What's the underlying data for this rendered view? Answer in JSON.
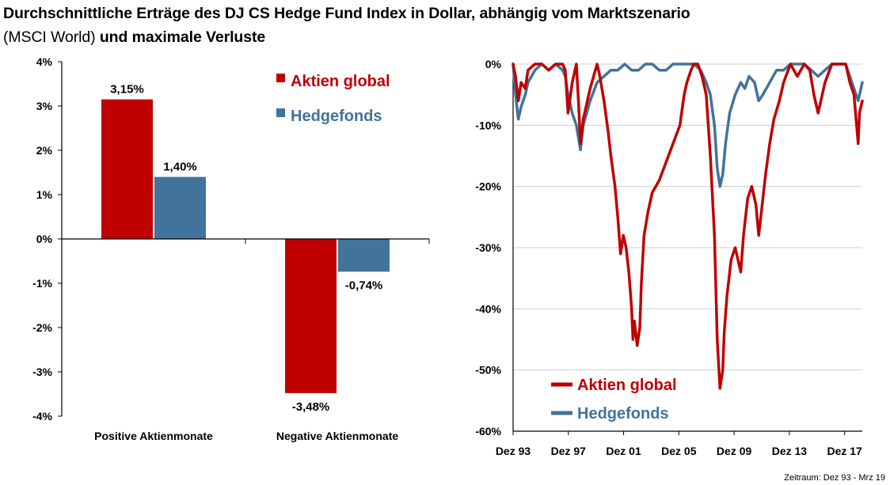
{
  "title": {
    "line1": "Durchschnittliche Erträge des DJ CS Hedge Fund Index in Dollar, abhängig vom Marktszenario",
    "line2_normal": "(MSCI World)",
    "line2_bold": " und maximale Verluste"
  },
  "footnote": "Zeitraum: Dez 93 - Mrz 19",
  "colors": {
    "aktien": "#c00000",
    "hedge": "#41739b",
    "grid": "#cfcfcf",
    "axis": "#000000"
  },
  "chart_data": [
    {
      "type": "bar",
      "categories": [
        "Positive Aktienmonate",
        "Negative Aktienmonate"
      ],
      "series": [
        {
          "name": "Aktien global",
          "values": [
            3.15,
            -3.48
          ],
          "labels": [
            "3,15%",
            "-3,48%"
          ]
        },
        {
          "name": "Hedgefonds",
          "values": [
            1.4,
            -0.74
          ],
          "labels": [
            "1,40%",
            "-0,74%"
          ]
        }
      ],
      "ylim": [
        -4,
        4
      ],
      "yticks": [
        -4,
        -3,
        -2,
        -1,
        0,
        1,
        2,
        3,
        4
      ],
      "ytick_labels": [
        "-4%",
        "-3%",
        "-2%",
        "-1%",
        "0%",
        "1%",
        "2%",
        "3%",
        "4%"
      ],
      "grid": false,
      "legend": "top-right"
    },
    {
      "type": "line",
      "x_tick_labels": [
        "Dez 93",
        "Dez 97",
        "Dez 01",
        "Dez 05",
        "Dez 09",
        "Dez 13",
        "Dez 17"
      ],
      "x_ticks": [
        1993.92,
        1997.92,
        2001.92,
        2005.92,
        2009.92,
        2013.92,
        2017.92
      ],
      "xlim": [
        1993.92,
        2019.2
      ],
      "ylim": [
        -60,
        0
      ],
      "yticks": [
        0,
        -10,
        -20,
        -30,
        -40,
        -50,
        -60
      ],
      "ytick_labels": [
        "0%",
        "-10%",
        "-20%",
        "-30%",
        "-40%",
        "-50%",
        "-60%"
      ],
      "grid": true,
      "legend": "bottom-left",
      "series": [
        {
          "name": "Aktien global",
          "x": [
            1993.92,
            1994.1,
            1994.3,
            1994.5,
            1994.8,
            1995.0,
            1995.5,
            1996.0,
            1996.5,
            1997.0,
            1997.5,
            1997.7,
            1997.9,
            1998.2,
            1998.5,
            1998.65,
            1998.8,
            1999.0,
            1999.5,
            2000.0,
            2000.2,
            2000.5,
            2000.8,
            2001.0,
            2001.3,
            2001.5,
            2001.7,
            2001.9,
            2002.1,
            2002.3,
            2002.5,
            2002.6,
            2002.7,
            2002.9,
            2003.1,
            2003.2,
            2003.4,
            2003.7,
            2004.0,
            2004.5,
            2005.0,
            2005.5,
            2006.0,
            2006.3,
            2006.5,
            2006.8,
            2007.0,
            2007.3,
            2007.6,
            2007.9,
            2008.2,
            2008.5,
            2008.7,
            2008.9,
            2009.1,
            2009.2,
            2009.4,
            2009.7,
            2010.0,
            2010.4,
            2010.6,
            2010.9,
            2011.2,
            2011.5,
            2011.7,
            2011.9,
            2012.2,
            2012.5,
            2012.8,
            2013.2,
            2013.5,
            2014.0,
            2014.5,
            2015.0,
            2015.4,
            2015.7,
            2016.0,
            2016.2,
            2016.5,
            2017.0,
            2017.5,
            2018.0,
            2018.3,
            2018.6,
            2018.9,
            2019.0,
            2019.2
          ],
          "y": [
            0,
            -2,
            -6,
            -3,
            -4,
            -1,
            0,
            0,
            -1,
            0,
            0,
            -1,
            -8,
            -3,
            0,
            -6,
            -13,
            -9,
            -4,
            0,
            -2,
            -6,
            -11,
            -15,
            -20,
            -25,
            -31,
            -28,
            -30,
            -34,
            -40,
            -45,
            -42,
            -46,
            -43,
            -36,
            -28,
            -24,
            -21,
            -19,
            -16,
            -13,
            -10,
            -5,
            -3,
            -1,
            0,
            0,
            -2,
            -5,
            -15,
            -28,
            -45,
            -53,
            -50,
            -44,
            -38,
            -32,
            -30,
            -34,
            -28,
            -22,
            -20,
            -23,
            -28,
            -24,
            -18,
            -13,
            -9,
            -6,
            -3,
            0,
            -2,
            0,
            -1,
            -5,
            -8,
            -6,
            -3,
            0,
            0,
            0,
            -3,
            -5,
            -13,
            -8,
            -6
          ]
        },
        {
          "name": "Hedgefonds",
          "x": [
            1993.92,
            1994.1,
            1994.3,
            1994.5,
            1994.8,
            1995.0,
            1995.5,
            1996.0,
            1996.5,
            1997.0,
            1997.5,
            1997.7,
            1997.9,
            1998.2,
            1998.5,
            1998.65,
            1998.8,
            1999.0,
            1999.5,
            2000.0,
            2000.5,
            2001.0,
            2001.5,
            2002.0,
            2002.5,
            2003.0,
            2003.5,
            2004.0,
            2004.5,
            2005.0,
            2005.5,
            2006.0,
            2006.5,
            2007.0,
            2007.5,
            2007.9,
            2008.2,
            2008.5,
            2008.7,
            2008.9,
            2009.1,
            2009.3,
            2009.6,
            2010.0,
            2010.4,
            2010.7,
            2011.0,
            2011.4,
            2011.7,
            2012.0,
            2012.5,
            2013.0,
            2013.5,
            2014.0,
            2014.5,
            2015.0,
            2015.5,
            2016.0,
            2016.5,
            2017.0,
            2017.5,
            2018.0,
            2018.3,
            2018.6,
            2018.9,
            2019.0,
            2019.2
          ],
          "y": [
            0,
            -5,
            -9,
            -7,
            -5,
            -3,
            -1,
            0,
            -1,
            0,
            -1,
            -2,
            -5,
            -8,
            -10,
            -12,
            -14,
            -10,
            -6,
            -3,
            -2,
            -1,
            -1,
            0,
            -1,
            -1,
            0,
            0,
            -1,
            -1,
            0,
            0,
            0,
            0,
            -1,
            -3,
            -5,
            -10,
            -17,
            -20,
            -18,
            -13,
            -8,
            -5,
            -3,
            -4,
            -2,
            -3,
            -6,
            -5,
            -3,
            -1,
            -1,
            0,
            0,
            0,
            -1,
            -2,
            -1,
            0,
            0,
            0,
            -2,
            -4,
            -6,
            -5,
            -3
          ]
        }
      ]
    }
  ]
}
